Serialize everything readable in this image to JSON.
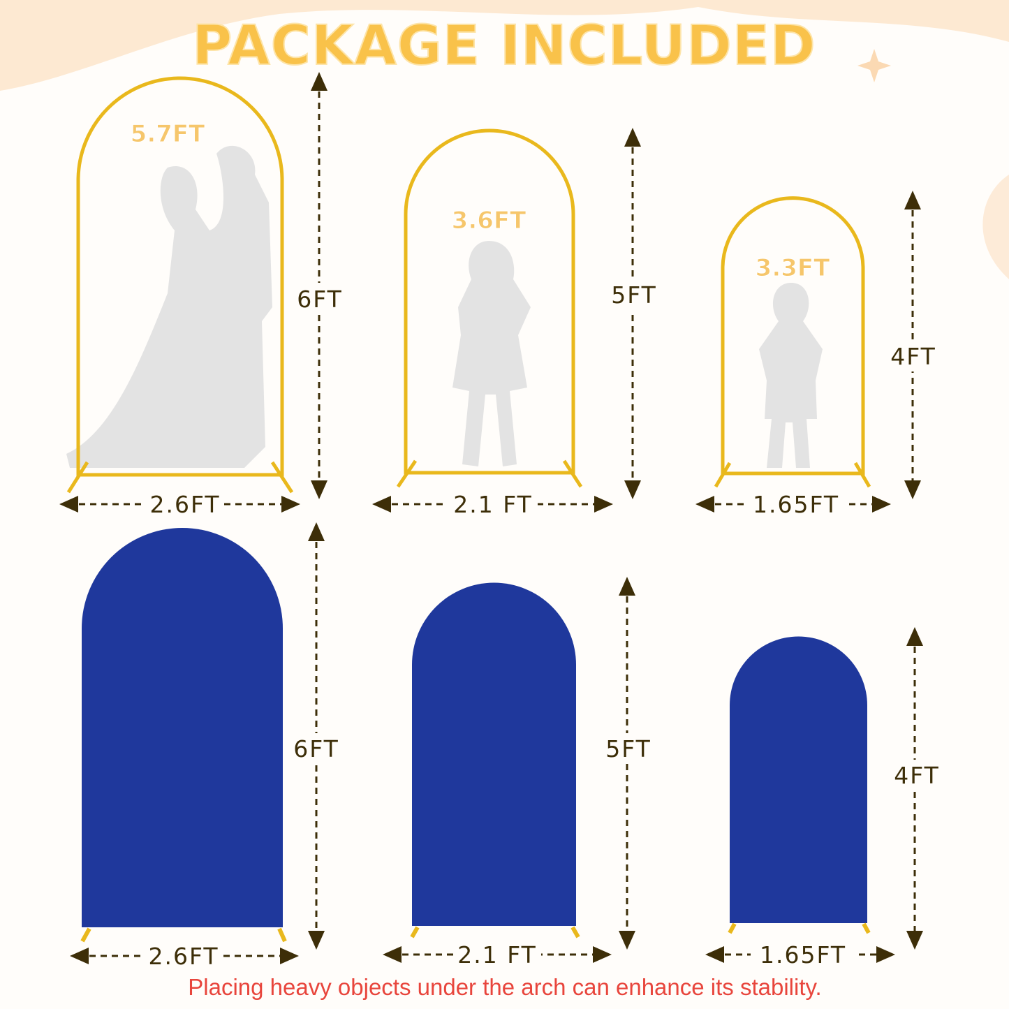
{
  "title": "PACKAGE INCLUDED",
  "colors": {
    "title": "#f9c24a",
    "frame": "#e9b81c",
    "cover": "#1f389c",
    "note": "#e8453c",
    "dimension": "#3d2e08"
  },
  "frames": [
    {
      "height_label": "6FT",
      "width_label": "2.6FT",
      "person_label": "5.7FT",
      "silhouette": "couple-silhouette"
    },
    {
      "height_label": "5FT",
      "width_label": "2.1 FT",
      "person_label": "3.6FT",
      "silhouette": "girl-silhouette"
    },
    {
      "height_label": "4FT",
      "width_label": "1.65FT",
      "person_label": "3.3FT",
      "silhouette": "boy-silhouette"
    }
  ],
  "covers": [
    {
      "height_label": "6FT",
      "width_label": "2.6FT"
    },
    {
      "height_label": "5FT",
      "width_label": "2.1 FT"
    },
    {
      "height_label": "4FT",
      "width_label": "1.65FT"
    }
  ],
  "note": "Placing heavy objects under the arch can enhance its stability."
}
